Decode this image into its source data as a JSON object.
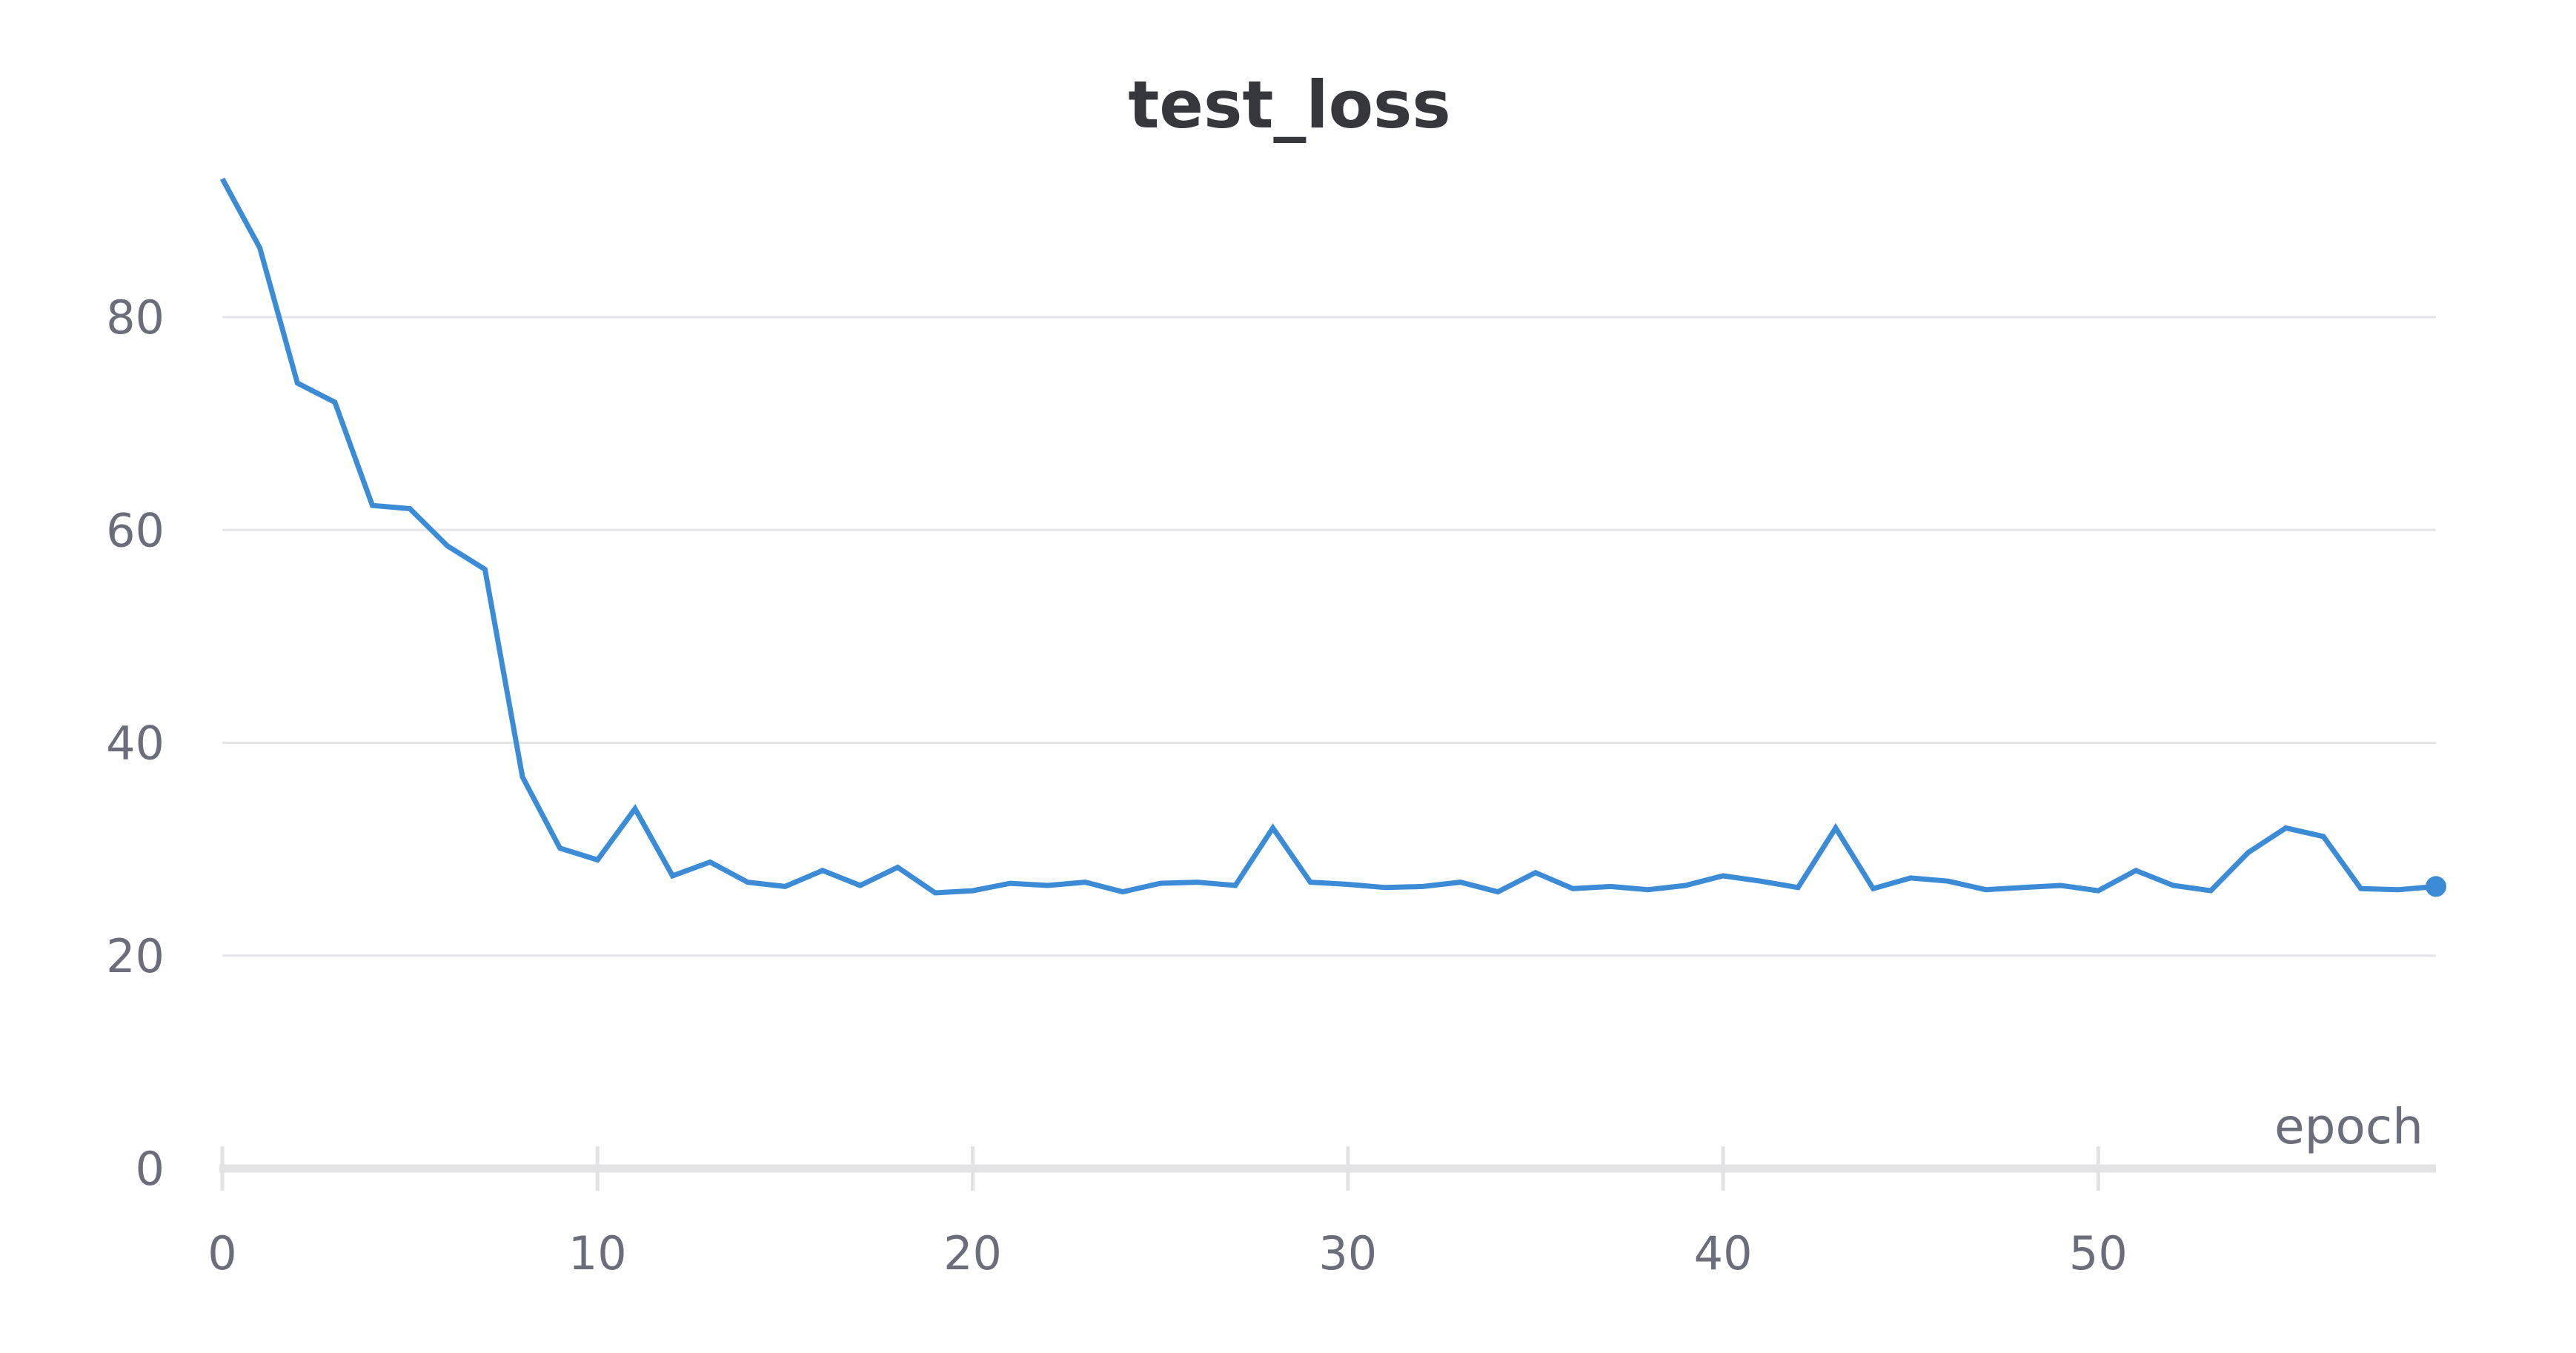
{
  "chart_data": {
    "type": "line",
    "title": "test_loss",
    "xlabel": "epoch",
    "ylabel": "",
    "xlim": [
      0,
      59
    ],
    "ylim": [
      0,
      93
    ],
    "x_ticks": [
      0,
      10,
      20,
      30,
      40,
      50
    ],
    "y_ticks": [
      0,
      20,
      40,
      60,
      80
    ],
    "grid": true,
    "series": [
      {
        "color": "#3b8bd6",
        "x": [
          0,
          1,
          2,
          3,
          4,
          5,
          6,
          7,
          8,
          9,
          10,
          11,
          12,
          13,
          14,
          15,
          16,
          17,
          18,
          19,
          20,
          21,
          22,
          23,
          24,
          25,
          26,
          27,
          28,
          29,
          30,
          31,
          32,
          33,
          34,
          35,
          36,
          37,
          38,
          39,
          40,
          41,
          42,
          43,
          44,
          45,
          46,
          47,
          48,
          49,
          50,
          51,
          52,
          53,
          54,
          55,
          56,
          57,
          58,
          59
        ],
        "values": [
          93.0,
          86.5,
          73.8,
          72.0,
          62.3,
          62.0,
          58.5,
          56.3,
          36.8,
          30.1,
          29.0,
          33.8,
          27.5,
          28.8,
          26.9,
          26.5,
          28.0,
          26.6,
          28.3,
          25.9,
          26.1,
          26.8,
          26.6,
          26.9,
          26.0,
          26.8,
          26.9,
          26.6,
          32.0,
          26.9,
          26.7,
          26.4,
          26.5,
          26.9,
          26.0,
          27.8,
          26.3,
          26.5,
          26.2,
          26.6,
          27.5,
          27.0,
          26.4,
          32.0,
          26.3,
          27.3,
          27.0,
          26.2,
          26.4,
          26.6,
          26.1,
          28.0,
          26.6,
          26.1,
          29.7,
          32.0,
          31.2,
          26.3,
          26.2,
          26.5
        ]
      }
    ]
  }
}
